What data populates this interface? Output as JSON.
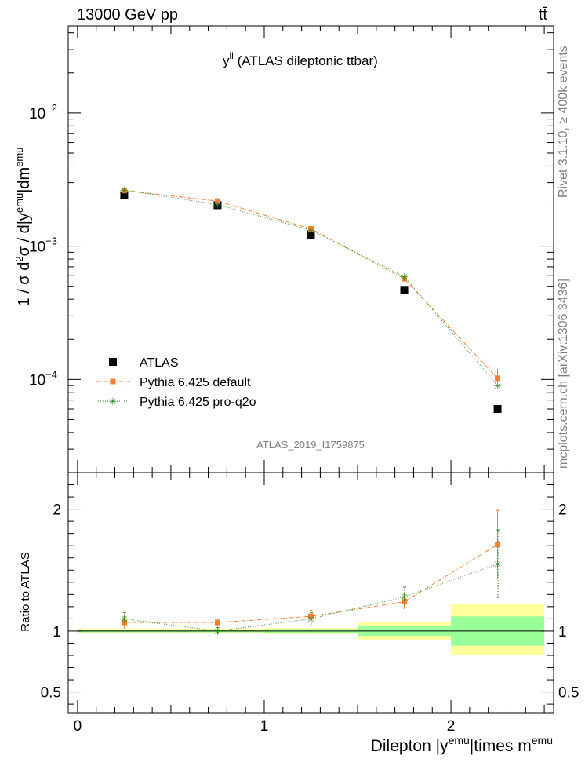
{
  "header": {
    "energy_label": "13000 GeV pp",
    "process_label": "tt̄"
  },
  "side_labels": {
    "rivet": "Rivet 3.1.10, ≥ 400k events",
    "mcplots": "mcplots.cern.ch [arXiv:1306.3436]"
  },
  "chart_data": [
    {
      "type": "scatter",
      "title": "y^{ll} (ATLAS dileptonic ttbar)",
      "title_main": "y",
      "title_sup": "ll",
      "title_rest": " (ATLAS dileptonic ttbar)",
      "watermark": "ATLAS_2019_I1759875",
      "ylabel": "1 / σ d²σ / d|y^{emu}|dm^{emu}",
      "yscale": "log",
      "ylim": [
        2e-05,
        0.045
      ],
      "xlim": [
        -0.05,
        2.55
      ],
      "y_ticks": [
        {
          "value": 0.0001,
          "base": "10",
          "exp": "−4"
        },
        {
          "value": 0.001,
          "base": "10",
          "exp": "−3"
        },
        {
          "value": 0.01,
          "base": "10",
          "exp": "−2"
        }
      ],
      "legend_position": "bottom-left",
      "series": [
        {
          "name": "ATLAS",
          "color": "#000000",
          "marker": "square",
          "x": [
            0.25,
            0.75,
            1.25,
            1.75,
            2.25
          ],
          "y": [
            0.00241,
            0.00203,
            0.00122,
            0.00047,
            6e-05
          ]
        },
        {
          "name": "Pythia 6.425 default",
          "color": "#f07f2e",
          "marker": "square-small",
          "x": [
            0.25,
            0.75,
            1.25,
            1.75,
            2.25
          ],
          "y": [
            0.00262,
            0.00218,
            0.00135,
            0.00057,
            0.000102
          ]
        },
        {
          "name": "Pythia 6.425 pro-q2o",
          "color": "#2e8b22",
          "marker": "star",
          "x": [
            0.25,
            0.75,
            1.25,
            1.75,
            2.25
          ],
          "y": [
            0.00265,
            0.00205,
            0.00132,
            0.00059,
            9e-05
          ]
        }
      ]
    },
    {
      "type": "scatter",
      "ylabel": "Ratio to ATLAS",
      "xlabel": "Dilepton |y^{emu}|times m^{emu}",
      "xlabel_parts": [
        "Dilepton |y",
        "emu",
        "|times m",
        "emu"
      ],
      "ylim": [
        0.33,
        2.3
      ],
      "xlim": [
        -0.05,
        2.55
      ],
      "y_ticks": [
        0.5,
        1,
        2
      ],
      "y_tick_labels": [
        "0.5",
        "1",
        "2"
      ],
      "x_ticks": [
        0,
        1,
        2
      ],
      "x_tick_labels": [
        "0",
        "1",
        "2"
      ],
      "bands": [
        {
          "x": [
            0.0,
            0.5
          ],
          "stat": [
            0.99,
            1.01
          ],
          "total": [
            0.985,
            1.02
          ]
        },
        {
          "x": [
            0.5,
            1.0
          ],
          "stat": [
            0.99,
            1.01
          ],
          "total": [
            0.985,
            1.02
          ]
        },
        {
          "x": [
            1.0,
            1.5
          ],
          "stat": [
            0.985,
            1.015
          ],
          "total": [
            0.975,
            1.025
          ]
        },
        {
          "x": [
            1.5,
            2.0
          ],
          "stat": [
            0.96,
            1.04
          ],
          "total": [
            0.93,
            1.07
          ]
        },
        {
          "x": [
            2.0,
            2.5
          ],
          "stat": [
            0.88,
            1.12
          ],
          "total": [
            0.8,
            1.22
          ]
        }
      ],
      "series": [
        {
          "name": "Pythia 6.425 default",
          "color": "#f07f2e",
          "x": [
            0.25,
            0.75,
            1.25,
            1.75,
            2.25
          ],
          "y": [
            1.07,
            1.07,
            1.12,
            1.24,
            1.71
          ],
          "err": [
            0.05,
            0.03,
            0.05,
            0.06,
            0.28
          ]
        },
        {
          "name": "Pythia 6.425 pro-q2o",
          "color": "#2e8b22",
          "x": [
            0.25,
            0.75,
            1.25,
            1.75,
            2.25
          ],
          "y": [
            1.1,
            1.0,
            1.1,
            1.28,
            1.55
          ],
          "err": [
            0.05,
            0.03,
            0.05,
            0.08,
            0.28
          ]
        }
      ]
    }
  ]
}
